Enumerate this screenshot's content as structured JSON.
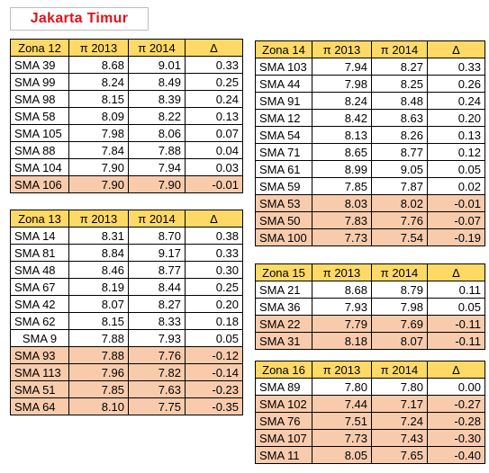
{
  "title": "Jakarta Timur",
  "columns": [
    "π 2013",
    "π 2014",
    "Δ"
  ],
  "zones": [
    {
      "label": "Zona 12",
      "rows": [
        {
          "school": "SMA 39",
          "y2013": "8.68",
          "y2014": "9.01",
          "delta": "0.33",
          "negative": false
        },
        {
          "school": "SMA 99",
          "y2013": "8.24",
          "y2014": "8.49",
          "delta": "0.25",
          "negative": false
        },
        {
          "school": "SMA 98",
          "y2013": "8.15",
          "y2014": "8.39",
          "delta": "0.24",
          "negative": false
        },
        {
          "school": "SMA 58",
          "y2013": "8.09",
          "y2014": "8.22",
          "delta": "0.13",
          "negative": false
        },
        {
          "school": "SMA 105",
          "y2013": "7.98",
          "y2014": "8.06",
          "delta": "0.07",
          "negative": false
        },
        {
          "school": "SMA 88",
          "y2013": "7.84",
          "y2014": "7.88",
          "delta": "0.04",
          "negative": false
        },
        {
          "school": "SMA 104",
          "y2013": "7.90",
          "y2014": "7.94",
          "delta": "0.03",
          "negative": false
        },
        {
          "school": "SMA 106",
          "y2013": "7.90",
          "y2014": "7.90",
          "delta": "-0.01",
          "negative": true
        }
      ]
    },
    {
      "label": "Zona 13",
      "rows": [
        {
          "school": "SMA 14",
          "y2013": "8.31",
          "y2014": "8.70",
          "delta": "0.38",
          "negative": false
        },
        {
          "school": "SMA 81",
          "y2013": "8.84",
          "y2014": "9.17",
          "delta": "0.33",
          "negative": false
        },
        {
          "school": "SMA 48",
          "y2013": "8.46",
          "y2014": "8.77",
          "delta": "0.30",
          "negative": false
        },
        {
          "school": "SMA 67",
          "y2013": "8.19",
          "y2014": "8.44",
          "delta": "0.25",
          "negative": false
        },
        {
          "school": "SMA 42",
          "y2013": "8.07",
          "y2014": "8.27",
          "delta": "0.20",
          "negative": false
        },
        {
          "school": "SMA 62",
          "y2013": "8.15",
          "y2014": "8.33",
          "delta": "0.18",
          "negative": false
        },
        {
          "school": "SMA 9",
          "y2013": "7.88",
          "y2014": "7.93",
          "delta": "0.05",
          "negative": false,
          "centered": true
        },
        {
          "school": "SMA 93",
          "y2013": "7.88",
          "y2014": "7.76",
          "delta": "-0.12",
          "negative": true
        },
        {
          "school": "SMA 113",
          "y2013": "7.96",
          "y2014": "7.82",
          "delta": "-0.14",
          "negative": true
        },
        {
          "school": "SMA 51",
          "y2013": "7.85",
          "y2014": "7.63",
          "delta": "-0.23",
          "negative": true
        },
        {
          "school": "SMA 64",
          "y2013": "8.10",
          "y2014": "7.75",
          "delta": "-0.35",
          "negative": true
        }
      ]
    },
    {
      "label": "Zona 14",
      "rows": [
        {
          "school": "SMA 103",
          "y2013": "7.94",
          "y2014": "8.27",
          "delta": "0.33",
          "negative": false
        },
        {
          "school": "SMA 44",
          "y2013": "7.98",
          "y2014": "8.25",
          "delta": "0.26",
          "negative": false
        },
        {
          "school": "SMA 91",
          "y2013": "8.24",
          "y2014": "8.48",
          "delta": "0.24",
          "negative": false
        },
        {
          "school": "SMA 12",
          "y2013": "8.42",
          "y2014": "8.63",
          "delta": "0.20",
          "negative": false
        },
        {
          "school": "SMA 54",
          "y2013": "8.13",
          "y2014": "8.26",
          "delta": "0.13",
          "negative": false
        },
        {
          "school": "SMA 71",
          "y2013": "8.65",
          "y2014": "8.77",
          "delta": "0.12",
          "negative": false
        },
        {
          "school": "SMA 61",
          "y2013": "8.99",
          "y2014": "9.05",
          "delta": "0.05",
          "negative": false
        },
        {
          "school": "SMA 59",
          "y2013": "7.85",
          "y2014": "7.87",
          "delta": "0.02",
          "negative": false
        },
        {
          "school": "SMA 53",
          "y2013": "8.03",
          "y2014": "8.02",
          "delta": "-0.01",
          "negative": true
        },
        {
          "school": "SMA 50",
          "y2013": "7.83",
          "y2014": "7.76",
          "delta": "-0.07",
          "negative": true
        },
        {
          "school": "SMA 100",
          "y2013": "7.73",
          "y2014": "7.54",
          "delta": "-0.19",
          "negative": true
        }
      ]
    },
    {
      "label": "Zona 15",
      "rows": [
        {
          "school": "SMA 21",
          "y2013": "8.68",
          "y2014": "8.79",
          "delta": "0.11",
          "negative": false
        },
        {
          "school": "SMA 36",
          "y2013": "7.93",
          "y2014": "7.98",
          "delta": "0.05",
          "negative": false
        },
        {
          "school": "SMA 22",
          "y2013": "7.79",
          "y2014": "7.69",
          "delta": "-0.11",
          "negative": true
        },
        {
          "school": "SMA 31",
          "y2013": "8.18",
          "y2014": "8.07",
          "delta": "-0.11",
          "negative": true
        }
      ]
    },
    {
      "label": "Zona 16",
      "rows": [
        {
          "school": "SMA 89",
          "y2013": "7.80",
          "y2014": "7.80",
          "delta": "0.00",
          "negative": false
        },
        {
          "school": "SMA 102",
          "y2013": "7.44",
          "y2014": "7.17",
          "delta": "-0.27",
          "negative": true
        },
        {
          "school": "SMA 76",
          "y2013": "7.51",
          "y2014": "7.24",
          "delta": "-0.28",
          "negative": true
        },
        {
          "school": "SMA 107",
          "y2013": "7.73",
          "y2014": "7.43",
          "delta": "-0.30",
          "negative": true
        },
        {
          "school": "SMA 11",
          "y2013": "8.05",
          "y2014": "7.65",
          "delta": "-0.40",
          "negative": true
        }
      ]
    }
  ],
  "colors": {
    "header_fill": "#ffd966",
    "negative_fill": "#f8cbad",
    "title_text": "#e0121b"
  }
}
